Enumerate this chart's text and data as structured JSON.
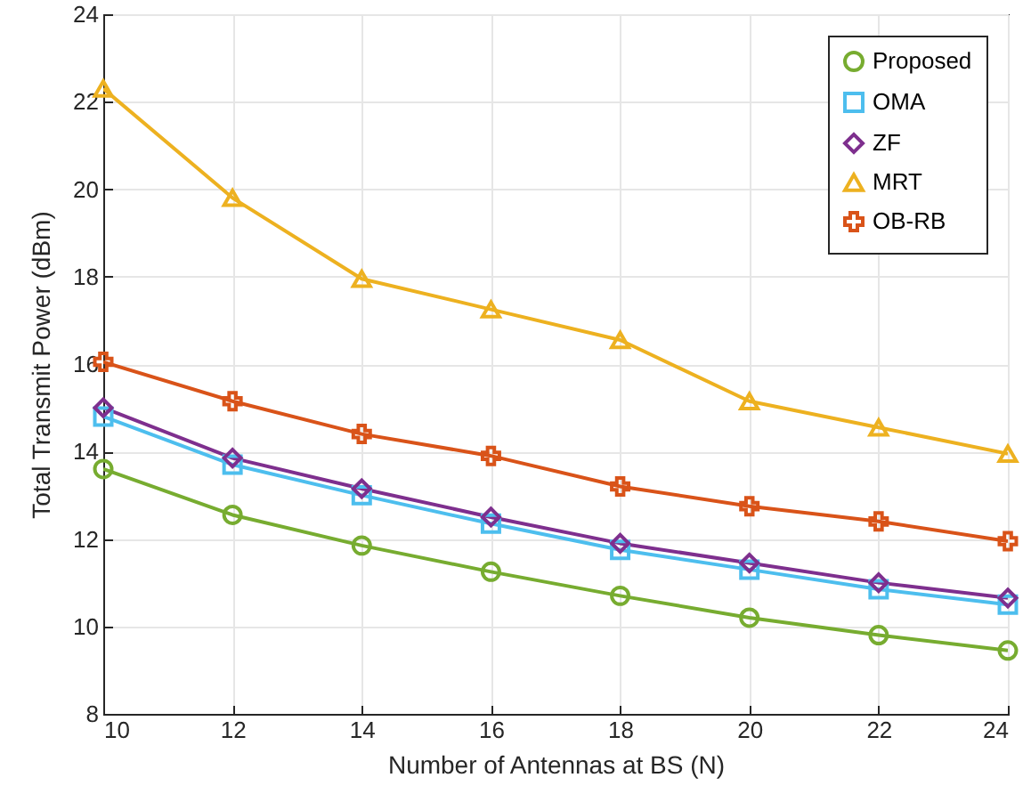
{
  "chart_data": {
    "type": "line",
    "xlabel": "Number of Antennas at BS (N)",
    "ylabel": "Total Transmit Power (dBm)",
    "x": [
      10,
      12,
      14,
      16,
      18,
      20,
      22,
      24
    ],
    "xlim": [
      10,
      24
    ],
    "xticks": [
      10,
      12,
      14,
      16,
      18,
      20,
      22,
      24
    ],
    "ylim": [
      8,
      24
    ],
    "yticks": [
      8,
      10,
      12,
      14,
      16,
      18,
      20,
      22,
      24
    ],
    "grid": true,
    "legend": "top right",
    "line_style": "solid",
    "series": [
      {
        "name": "Proposed",
        "color": "#77ac30",
        "marker": "circle",
        "values": [
          13.6,
          12.55,
          11.85,
          11.25,
          10.7,
          10.2,
          9.8,
          9.45
        ]
      },
      {
        "name": "OMA",
        "color": "#4dbeee",
        "marker": "square",
        "values": [
          14.8,
          13.7,
          13.0,
          12.35,
          11.75,
          11.3,
          10.85,
          10.5
        ]
      },
      {
        "name": "ZF",
        "color": "#7e2f8e",
        "marker": "diamond",
        "values": [
          15.0,
          13.85,
          13.15,
          12.5,
          11.9,
          11.45,
          11.0,
          10.65
        ]
      },
      {
        "name": "MRT",
        "color": "#edb120",
        "marker": "triangle",
        "values": [
          22.3,
          19.8,
          17.95,
          17.25,
          16.55,
          15.15,
          14.55,
          13.95
        ]
      },
      {
        "name": "OB-RB",
        "color": "#d95319",
        "marker": "cross",
        "values": [
          16.05,
          15.15,
          14.4,
          13.9,
          13.2,
          12.75,
          12.4,
          11.95
        ]
      }
    ]
  }
}
